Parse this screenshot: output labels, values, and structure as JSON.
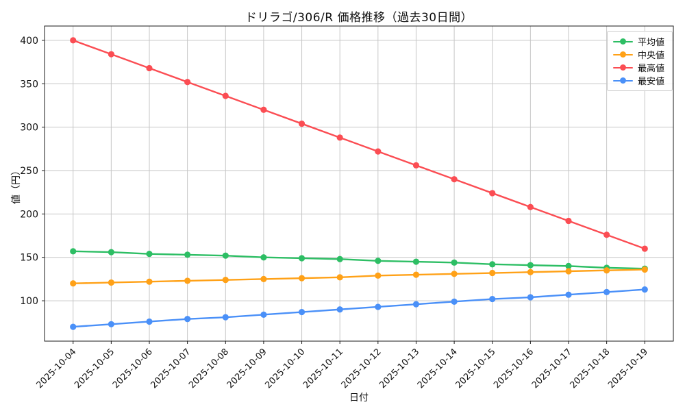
{
  "chart_data": {
    "type": "line",
    "title": "ドリラゴ/306/R 価格推移（過去30日間）",
    "xlabel": "日付",
    "ylabel": "値（円）",
    "x": [
      "2025-10-04",
      "2025-10-05",
      "2025-10-06",
      "2025-10-07",
      "2025-10-08",
      "2025-10-09",
      "2025-10-10",
      "2025-10-11",
      "2025-10-12",
      "2025-10-13",
      "2025-10-14",
      "2025-10-15",
      "2025-10-16",
      "2025-10-17",
      "2025-10-18",
      "2025-10-19"
    ],
    "yticks": [
      100,
      150,
      200,
      250,
      300,
      350,
      400
    ],
    "ylim": [
      53.5,
      416.5
    ],
    "grid": true,
    "legend_position": "upper right",
    "series": [
      {
        "name": "平均値",
        "color": "#2dbe64",
        "values": [
          157,
          156,
          154,
          153,
          152,
          150,
          149,
          148,
          146,
          145,
          144,
          142,
          141,
          140,
          138,
          137
        ]
      },
      {
        "name": "中央値",
        "color": "#ffa117",
        "values": [
          120,
          121,
          122,
          123,
          124,
          125,
          126,
          127,
          129,
          130,
          131,
          132,
          133,
          134,
          135,
          136
        ]
      },
      {
        "name": "最高値",
        "color": "#fb4d53",
        "values": [
          400,
          384,
          368,
          352,
          336,
          320,
          304,
          288,
          272,
          256,
          240,
          224,
          208,
          192,
          176,
          160
        ]
      },
      {
        "name": "最安値",
        "color": "#4a90f8",
        "values": [
          70,
          73,
          76,
          79,
          81,
          84,
          87,
          90,
          93,
          96,
          99,
          102,
          104,
          107,
          110,
          113
        ]
      }
    ],
    "style": {
      "grid_color": "#c6c6c6",
      "spine_color": "#1a1a1a",
      "text_color": "#111111"
    }
  }
}
